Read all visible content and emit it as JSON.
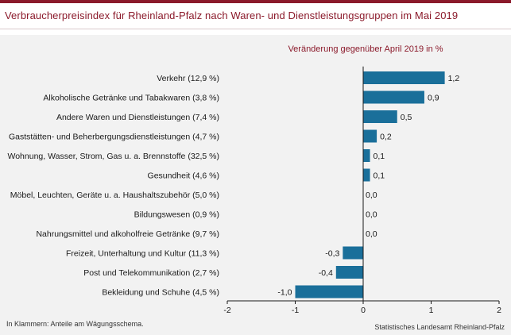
{
  "header": {
    "title": "Verbraucherpreisindex für Rheinland-Pfalz nach Waren- und Dienstleistungsgruppen im Mai 2019"
  },
  "footer": {
    "note": "In Klammern: Anteile am Wägungsschema.",
    "source": "Statistisches Landesamt Rheinland-Pfalz"
  },
  "colors": {
    "title": "#8b1a2b",
    "bar": "#1a6f9a",
    "panel": "#f2f2f2"
  },
  "chart_data": {
    "type": "bar",
    "orientation": "horizontal",
    "title": "Veränderung gegenüber April 2019 in %",
    "categories": [
      "Verkehr (12,9 %)",
      "Alkoholische Getränke und Tabakwaren (3,8 %)",
      "Andere Waren und Dienstleistungen (7,4 %)",
      "Gaststätten- und Beherbergungsdienstleistungen (4,7 %)",
      "Wohnung, Wasser, Strom, Gas u. a. Brennstoffe (32,5 %)",
      "Gesundheit (4,6 %)",
      "Möbel, Leuchten, Geräte u. a. Haushaltszubehör (5,0 %)",
      "Bildungswesen (0,9 %)",
      "Nahrungsmittel und alkoholfreie Getränke (9,7 %)",
      "Freizeit, Unterhaltung und Kultur (11,3 %)",
      "Post und Telekommunikation (2,7 %)",
      "Bekleidung und Schuhe (4,5 %)"
    ],
    "values": [
      1.2,
      0.9,
      0.5,
      0.2,
      0.1,
      0.1,
      0.0,
      0.0,
      0.0,
      -0.3,
      -0.4,
      -1.0
    ],
    "value_labels": [
      "1,2",
      "0,9",
      "0,5",
      "0,2",
      "0,1",
      "0,1",
      "0,0",
      "0,0",
      "0,0",
      "-0,3",
      "-0,4",
      "-1,0"
    ],
    "xlim": [
      -2,
      2
    ],
    "xticks": [
      -2,
      -1,
      0,
      1,
      2
    ],
    "xtick_labels": [
      "-2",
      "-1",
      "0",
      "1",
      "2"
    ],
    "grid": false
  }
}
